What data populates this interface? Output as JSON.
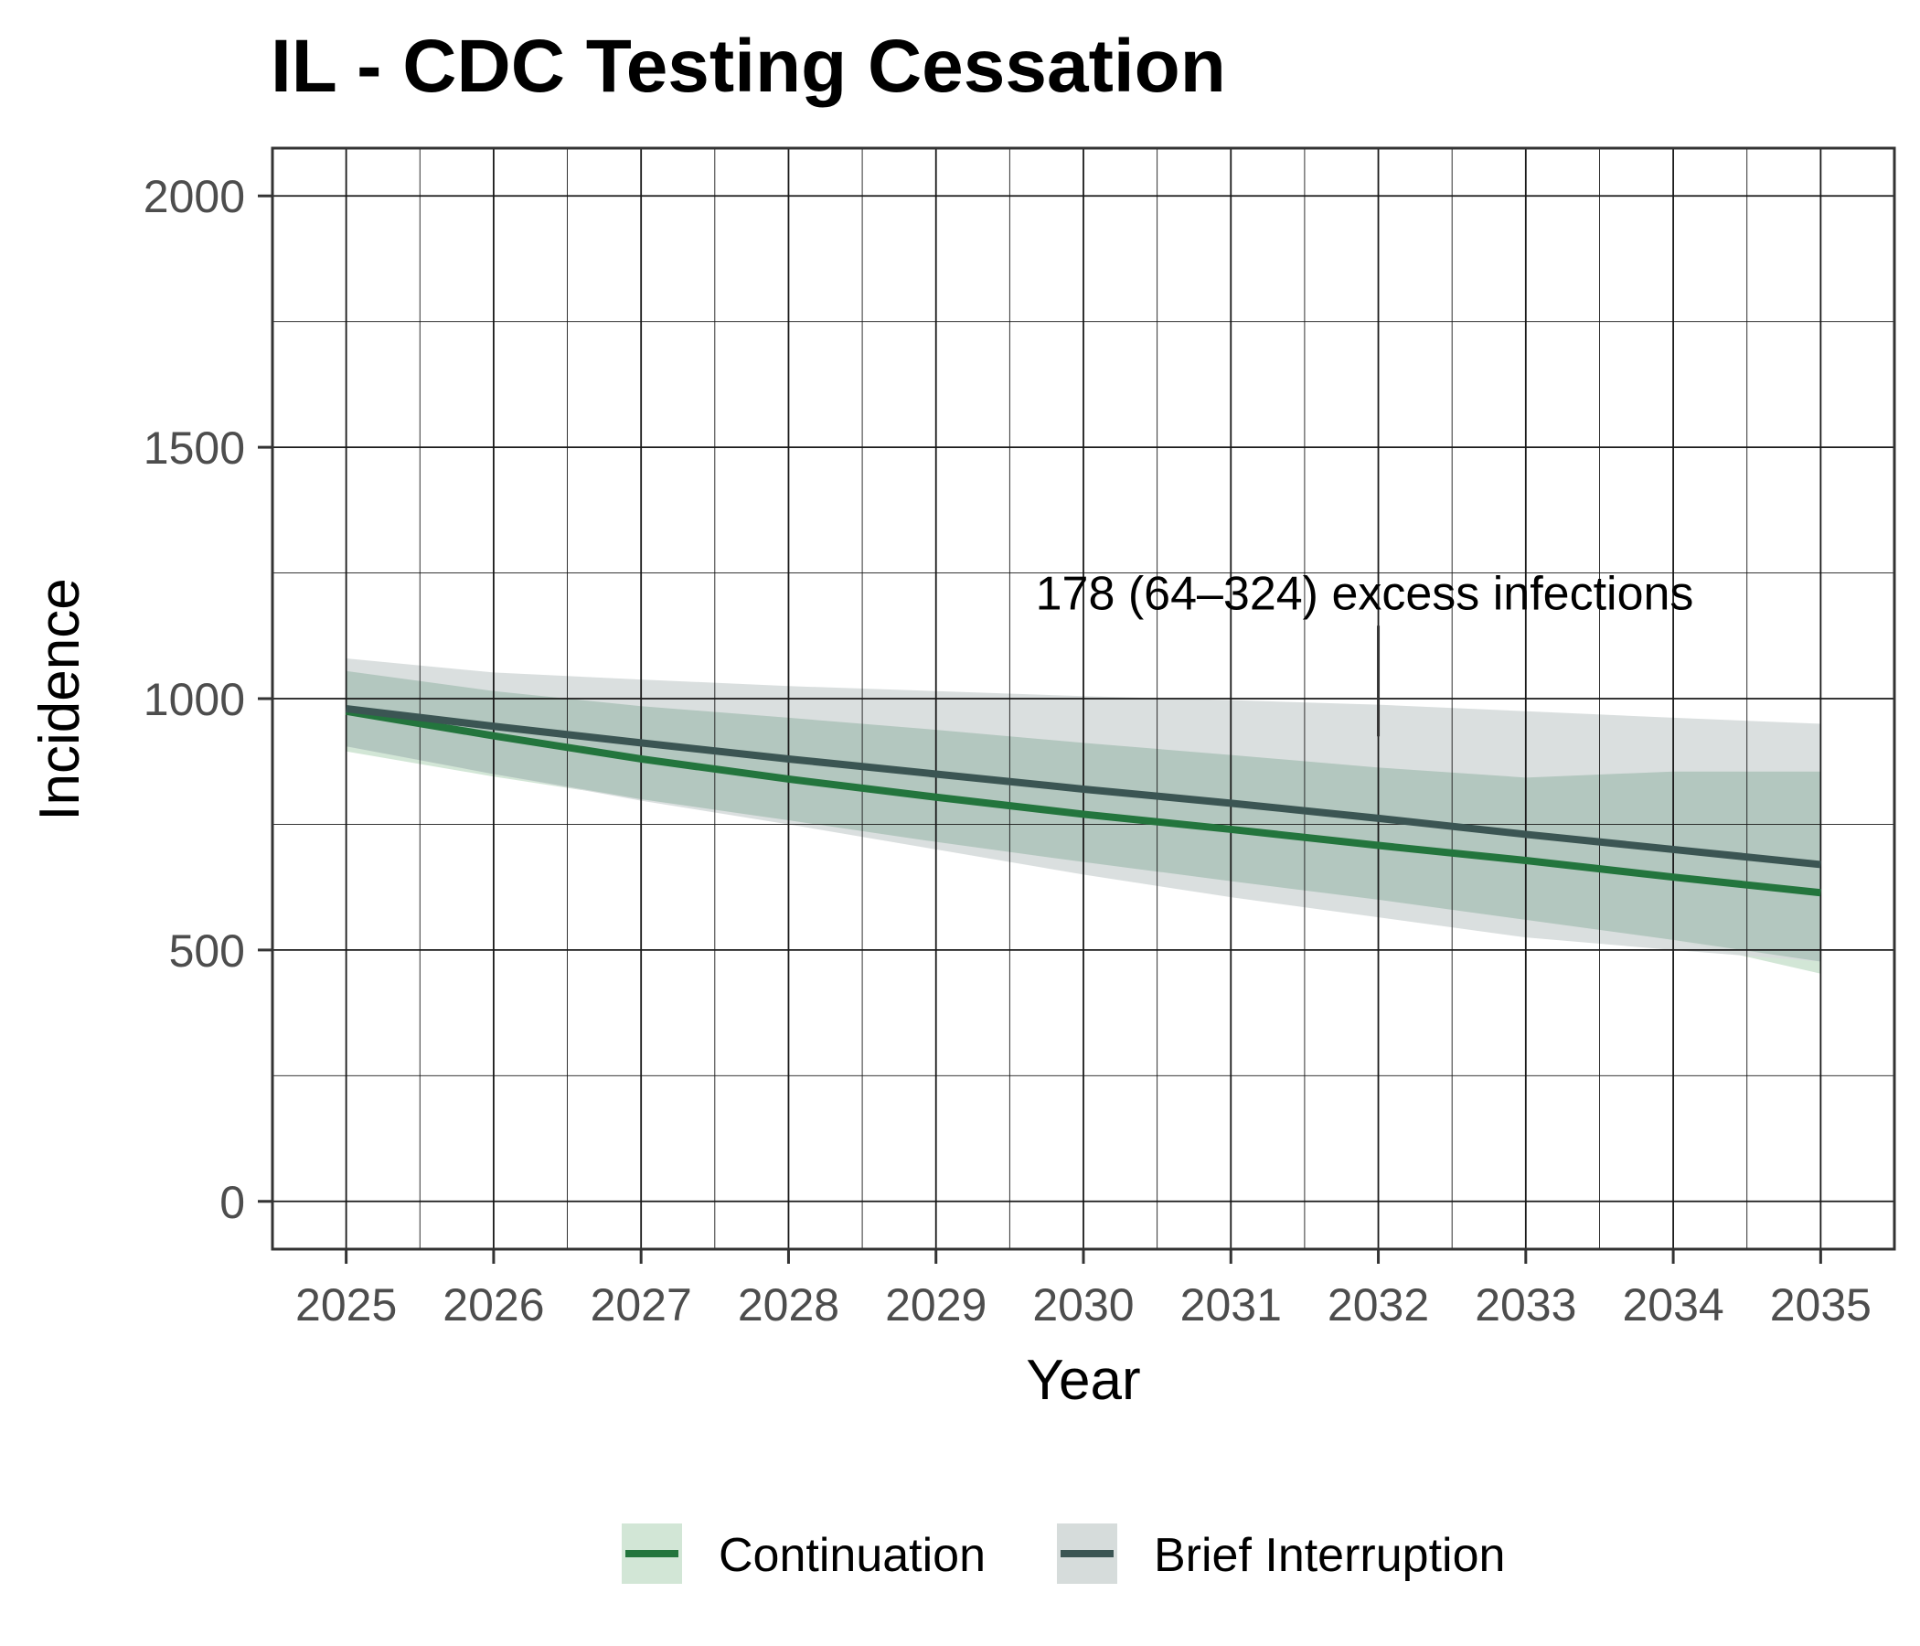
{
  "chart_data": {
    "type": "line",
    "title": "IL - CDC Testing Cessation",
    "xlabel": "Year",
    "ylabel": "Incidence",
    "x_ticks": [
      "2025",
      "2026",
      "2027",
      "2028",
      "2029",
      "2030",
      "2031",
      "2032",
      "2033",
      "2034",
      "2035"
    ],
    "y_ticks": [
      "0",
      "500",
      "1000",
      "1500",
      "2000"
    ],
    "xlim": [
      2024.5,
      2035.5
    ],
    "ylim": [
      -95,
      2095
    ],
    "grid": true,
    "legend_position": "bottom",
    "x": [
      2025,
      2026,
      2027,
      2028,
      2029,
      2030,
      2031,
      2032,
      2033,
      2034,
      2035
    ],
    "series": [
      {
        "name": "Continuation",
        "color": "#23753d",
        "band_color": "#d2e6d6",
        "values": [
          975,
          926,
          880,
          840,
          804,
          770,
          740,
          708,
          678,
          645,
          614
        ],
        "lower": [
          895,
          845,
          800,
          758,
          715,
          675,
          637,
          600,
          560,
          520,
          453
        ],
        "upper": [
          1055,
          1015,
          985,
          962,
          938,
          912,
          888,
          863,
          843,
          855,
          855
        ]
      },
      {
        "name": "Brief Interruption",
        "color": "#3b5553",
        "band_color": "#d6dcdb",
        "values": [
          980,
          945,
          912,
          880,
          850,
          820,
          792,
          762,
          730,
          700,
          670
        ],
        "lower": [
          905,
          850,
          797,
          750,
          700,
          650,
          605,
          565,
          525,
          500,
          477
        ],
        "upper": [
          1080,
          1052,
          1038,
          1025,
          1015,
          1005,
          997,
          988,
          975,
          962,
          950
        ]
      }
    ],
    "annotation": {
      "text": "178 (64–324) excess infections",
      "x": 2032,
      "y_from": 1145,
      "y_to": 925
    }
  }
}
